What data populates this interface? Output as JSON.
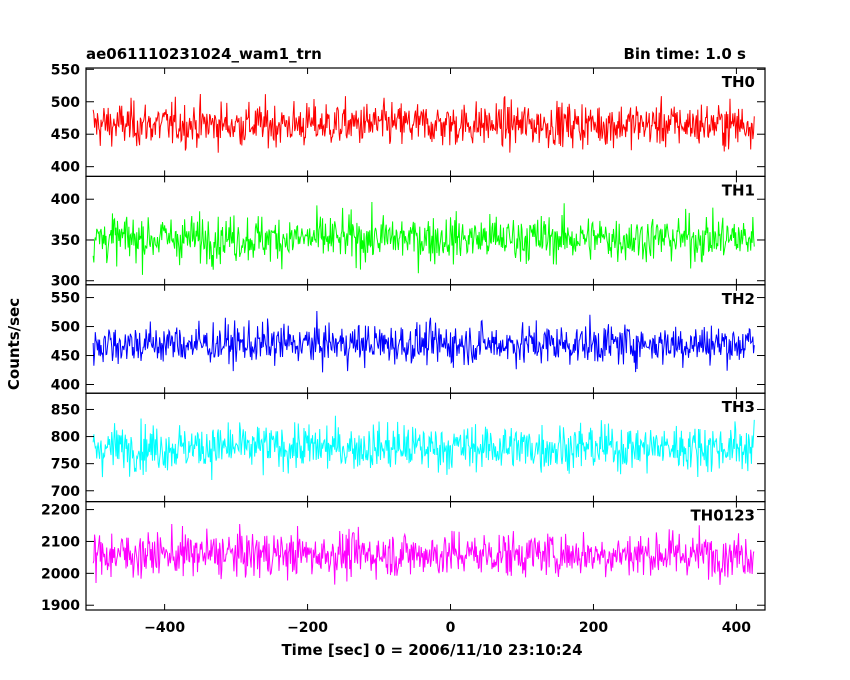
{
  "chart_data": {
    "type": "line",
    "title": "ae061110231024_wam1_trn",
    "subtitle": "Bin time: 1.0 s",
    "xlabel": "Time [sec] 0 = 2006/11/10 23:10:24",
    "ylabel": "Counts/sec",
    "xlim": [
      -510,
      440
    ],
    "x_range": [
      -500,
      425
    ],
    "x_ticks": [
      -400,
      -200,
      0,
      200,
      400
    ],
    "x_tick_labels": [
      "−400",
      "−200",
      "0",
      "200",
      "400"
    ],
    "grid": false,
    "panels": [
      {
        "name": "TH0",
        "color": "#ff0000",
        "ylim": [
          385,
          552
        ],
        "mean": 465,
        "noise": 24,
        "yticks": [
          400,
          450,
          500,
          550
        ],
        "tick_labels": [
          "400",
          "450",
          "500",
          "550"
        ]
      },
      {
        "name": "TH1",
        "color": "#00ff00",
        "ylim": [
          295,
          428
        ],
        "mean": 352,
        "noise": 20,
        "yticks": [
          300,
          350,
          400
        ],
        "tick_labels": [
          "300",
          "350",
          "400"
        ]
      },
      {
        "name": "TH2",
        "color": "#0000ff",
        "ylim": [
          385,
          572
        ],
        "mean": 470,
        "noise": 25,
        "yticks": [
          400,
          450,
          500,
          550
        ],
        "tick_labels": [
          "400",
          "450",
          "500",
          "550"
        ]
      },
      {
        "name": "TH3",
        "color": "#00ffff",
        "ylim": [
          680,
          880
        ],
        "mean": 780,
        "noise": 30,
        "yticks": [
          700,
          750,
          800,
          850
        ],
        "tick_labels": [
          "700",
          "750",
          "800",
          "850"
        ]
      },
      {
        "name": "TH0123",
        "color": "#ff00ff",
        "ylim": [
          1885,
          2225
        ],
        "mean": 2060,
        "noise": 50,
        "yticks": [
          1900,
          2000,
          2100,
          2200
        ],
        "tick_labels": [
          "1900",
          "2000",
          "2100",
          "2200"
        ]
      }
    ]
  }
}
